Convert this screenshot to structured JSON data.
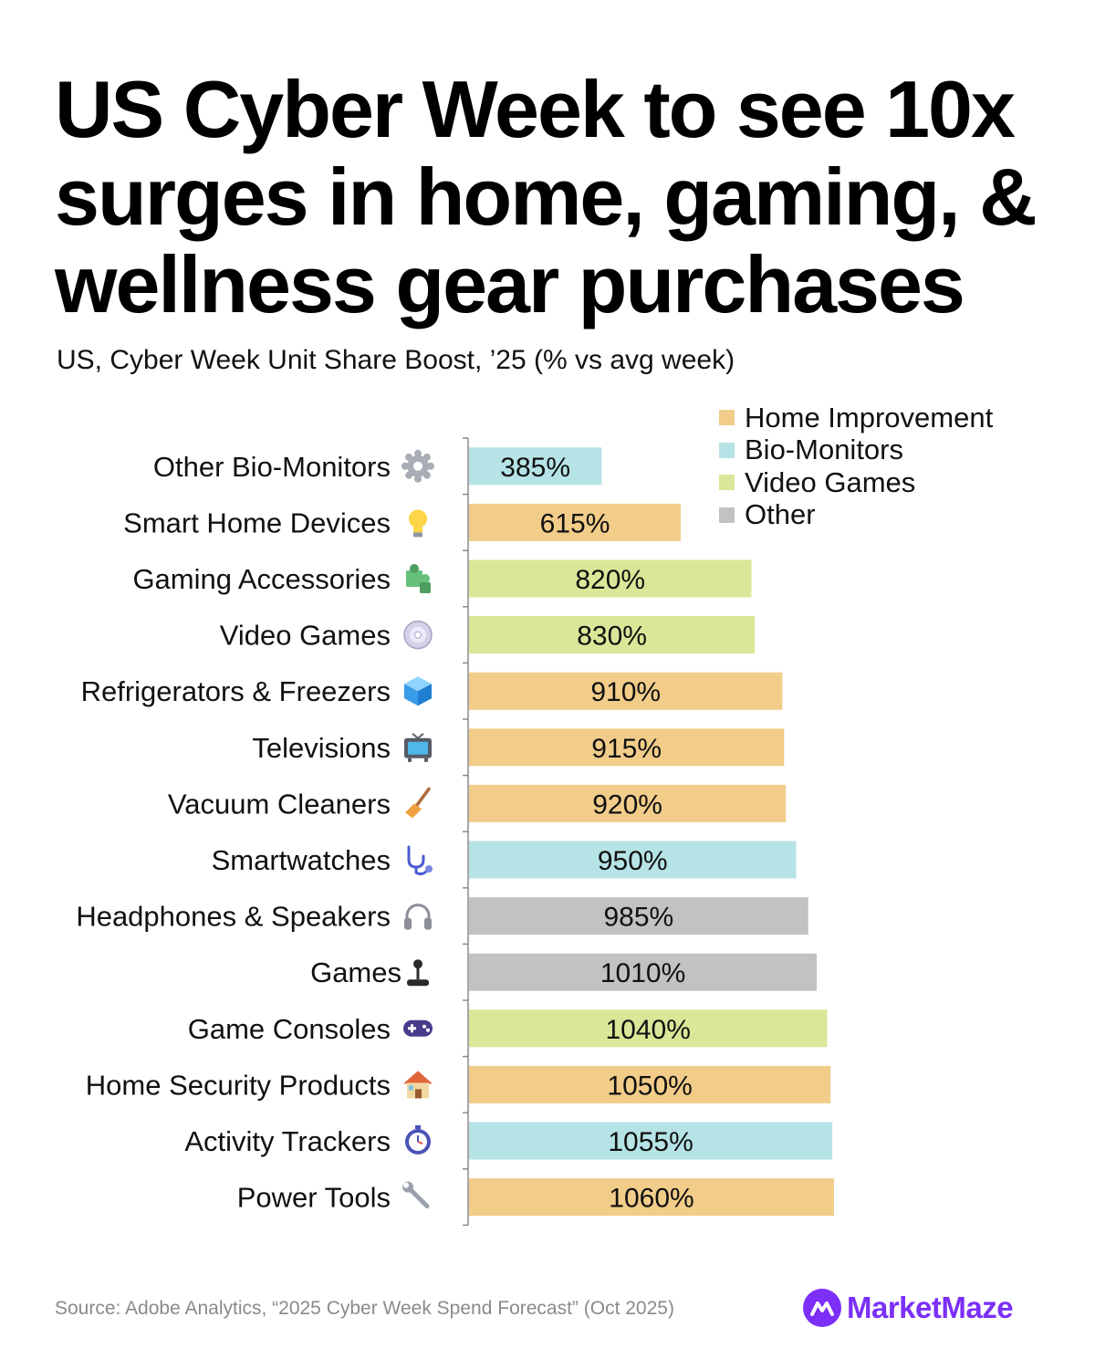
{
  "header": {
    "title": "US Cyber Week to see 10x surges in home, gaming, & wellness gear purchases",
    "subtitle": "US, Cyber Week Unit Share Boost, ’25 (% vs avg week)"
  },
  "colors": {
    "Home Improvement": "#f2cd8a",
    "Bio-Monitors": "#b6e3e5",
    "Video Games": "#d9e898",
    "Other": "#c2c2c2",
    "brand": "#7b2ff7"
  },
  "legend": [
    {
      "label": "Home Improvement",
      "color": "#f2cd8a"
    },
    {
      "label": "Bio-Monitors",
      "color": "#b6e3e5"
    },
    {
      "label": "Video Games",
      "color": "#d9e898"
    },
    {
      "label": "Other",
      "color": "#c2c2c2"
    }
  ],
  "chart_data": {
    "type": "bar",
    "orientation": "horizontal",
    "title": "US Cyber Week to see 10x surges in home, gaming, & wellness gear purchases",
    "subtitle": "US, Cyber Week Unit Share Boost, ’25 (% vs avg week)",
    "xlabel": "",
    "ylabel": "",
    "xlim": [
      0,
      1300
    ],
    "grid": false,
    "legend_position": "top-right",
    "categories": [
      "Other Bio-Monitors",
      "Smart Home Devices",
      "Gaming Accessories",
      "Video Games",
      "Refrigerators & Freezers",
      "Televisions",
      "Vacuum Cleaners",
      "Smartwatches",
      "Headphones & Speakers",
      "Games",
      "Game Consoles",
      "Home Security Products",
      "Activity Trackers",
      "Power Tools"
    ],
    "values": [
      385,
      615,
      820,
      830,
      910,
      915,
      920,
      950,
      985,
      1010,
      1040,
      1050,
      1055,
      1060
    ],
    "value_labels": [
      "385%",
      "615%",
      "820%",
      "830%",
      "910%",
      "915%",
      "920%",
      "950%",
      "985%",
      "1010%",
      "1040%",
      "1050%",
      "1055%",
      "1060%"
    ],
    "groups": [
      "Bio-Monitors",
      "Home Improvement",
      "Video Games",
      "Video Games",
      "Home Improvement",
      "Home Improvement",
      "Home Improvement",
      "Bio-Monitors",
      "Other",
      "Other",
      "Video Games",
      "Home Improvement",
      "Bio-Monitors",
      "Home Improvement"
    ],
    "icons": [
      "gear-icon",
      "lightbulb-icon",
      "puzzle-icon",
      "disc-icon",
      "ice-cube-icon",
      "television-icon",
      "broom-icon",
      "stethoscope-icon",
      "headphones-icon",
      "joystick-icon",
      "gamepad-icon",
      "house-icon",
      "stopwatch-icon",
      "wrench-icon"
    ]
  },
  "footer": {
    "source": "Source: Adobe Analytics, “2025 Cyber Week Spend Forecast” (Oct 2025)",
    "brand": "MarketMaze"
  }
}
